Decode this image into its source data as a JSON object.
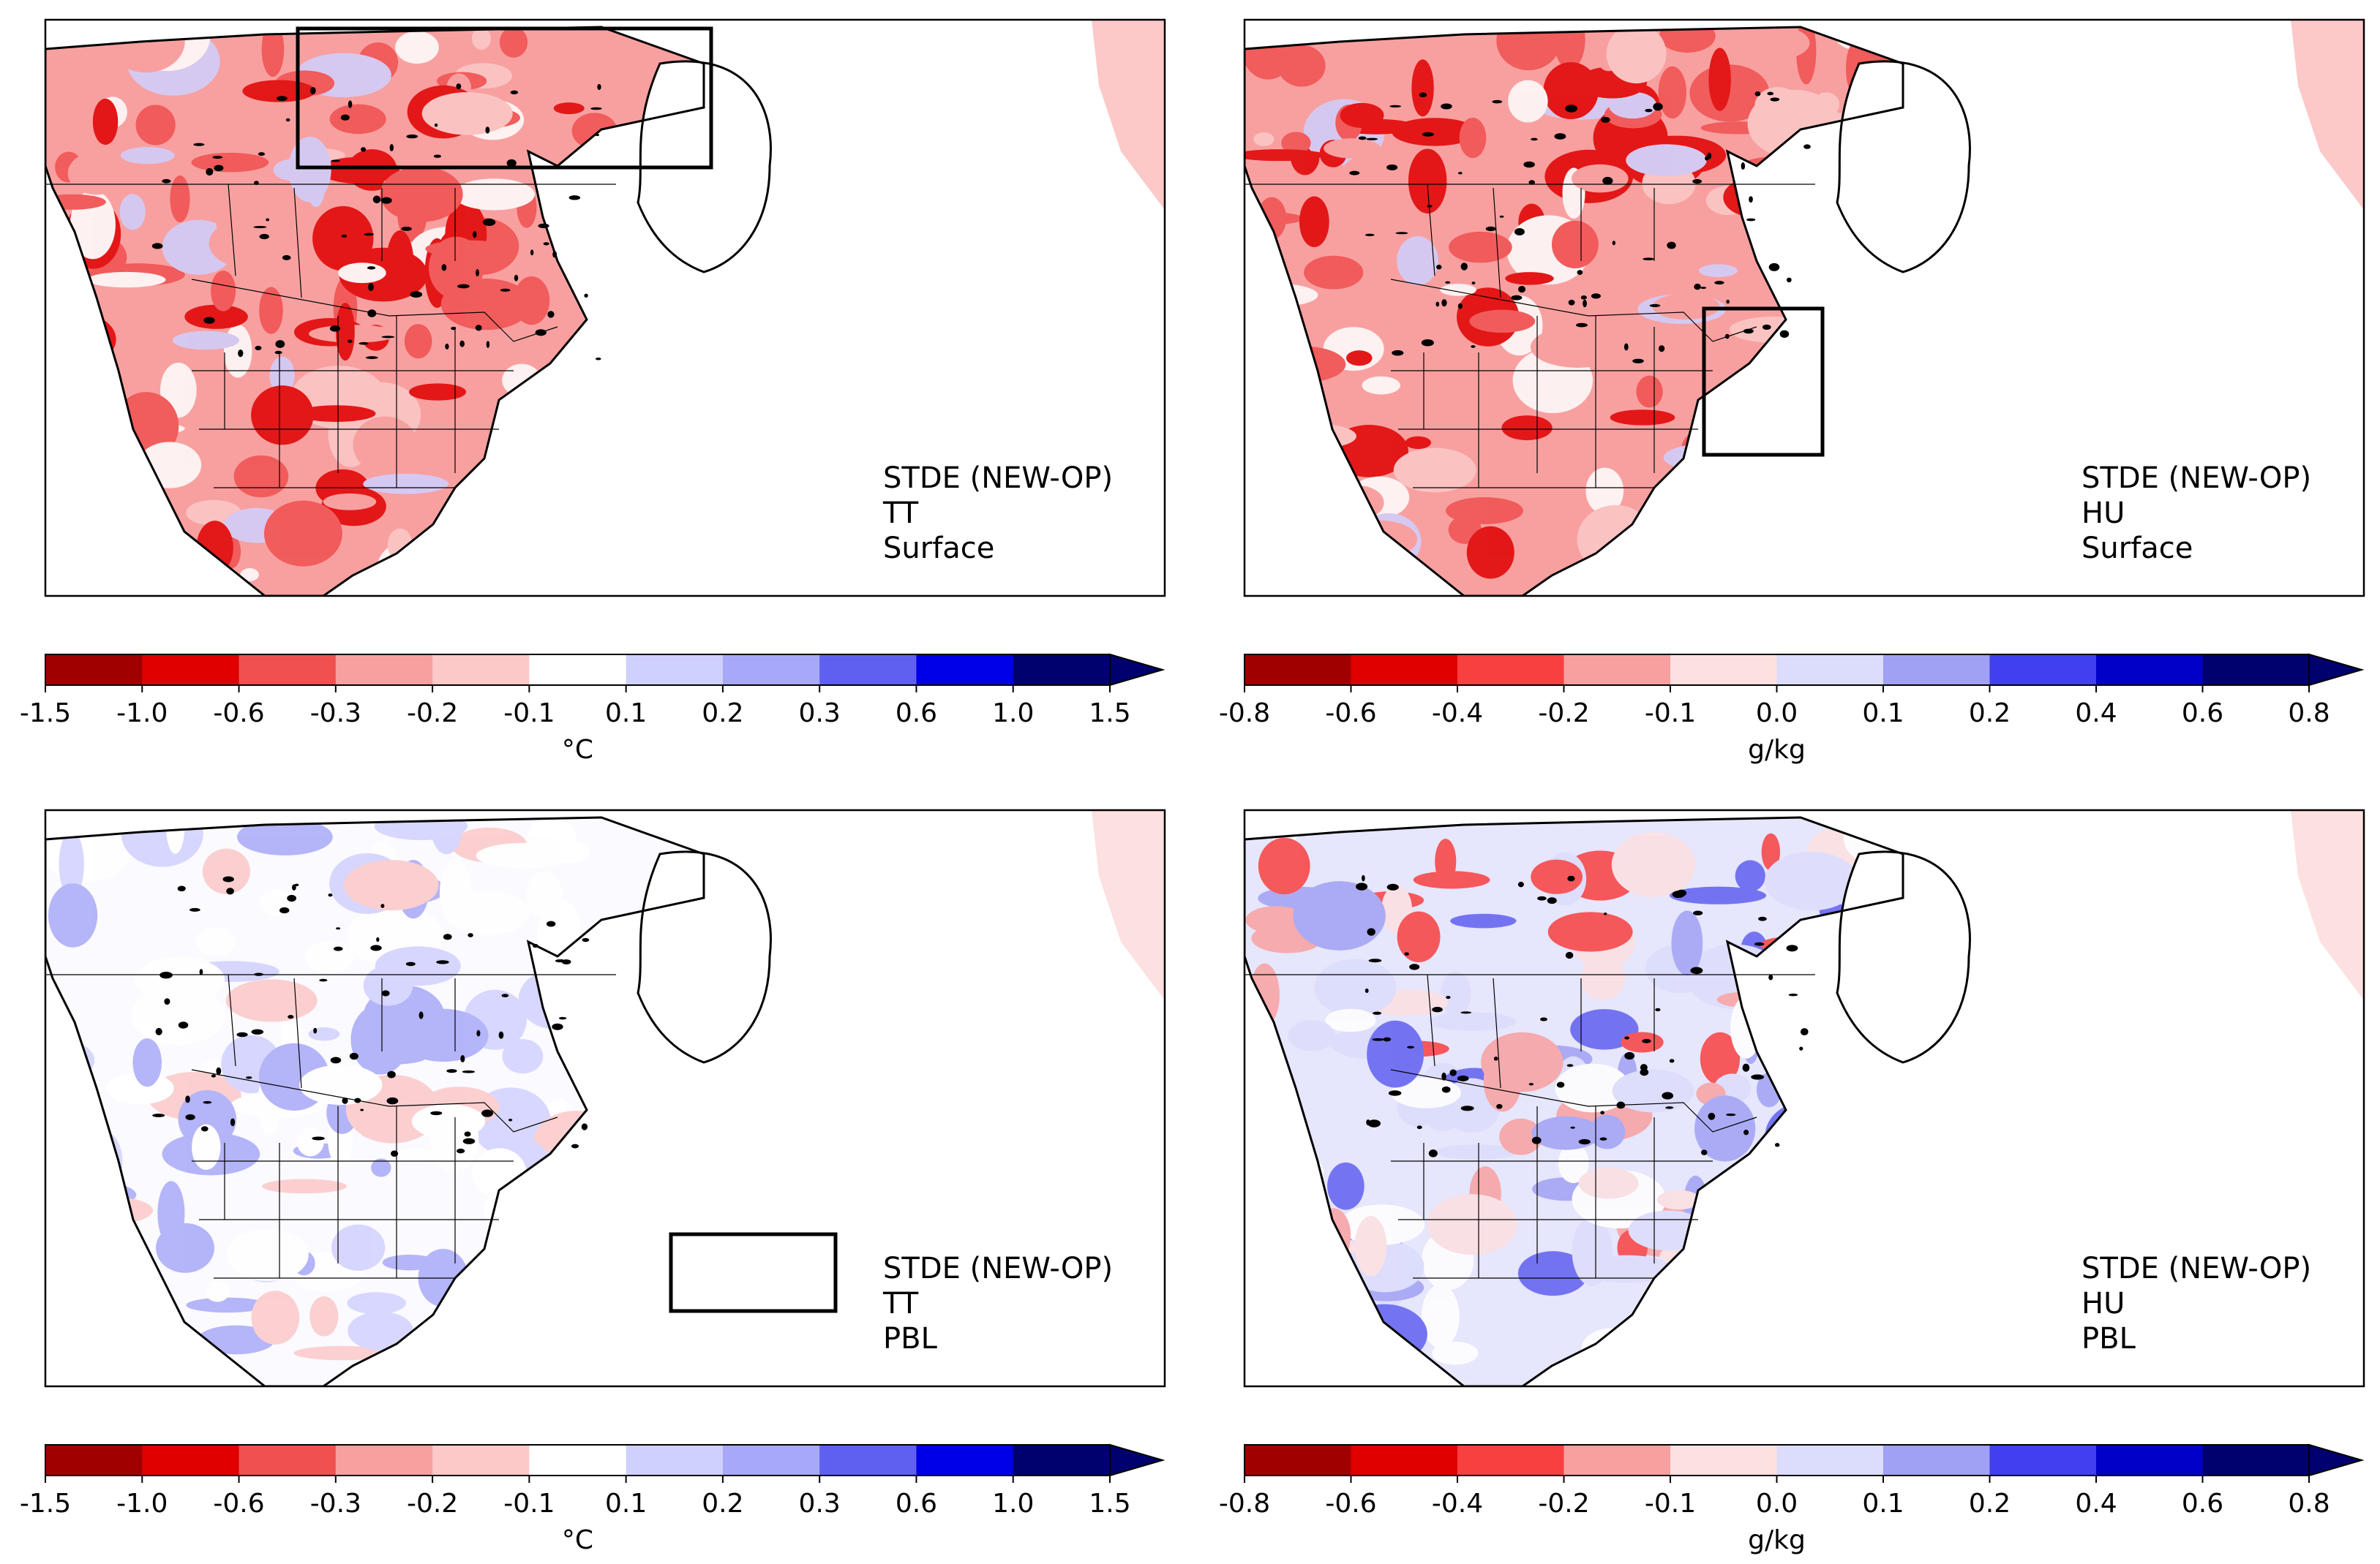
{
  "figure": {
    "panels": [
      {
        "id": "tt-surface",
        "title": "STDE (NEW-OP)",
        "variable": "TT",
        "level": "Surface",
        "scale": "temp",
        "tone": "red-strong",
        "box": "north-canada"
      },
      {
        "id": "hu-surface",
        "title": "STDE (NEW-OP)",
        "variable": "HU",
        "level": "Surface",
        "scale": "hum",
        "tone": "red-strong",
        "box": "central-us"
      },
      {
        "id": "tt-pbl",
        "title": "STDE (NEW-OP)",
        "variable": "TT",
        "level": "PBL",
        "scale": "temp",
        "tone": "neutral-blue",
        "box": "southeast-us"
      },
      {
        "id": "hu-pbl",
        "title": "STDE (NEW-OP)",
        "variable": "HU",
        "level": "PBL",
        "scale": "hum",
        "tone": "mixed",
        "box": null
      }
    ],
    "colorbars": {
      "temp": {
        "unit": "°C",
        "ticks": [
          "-1.5",
          "-1.0",
          "-0.6",
          "-0.3",
          "-0.2",
          "-0.1",
          "0.1",
          "0.2",
          "0.3",
          "0.6",
          "1.0",
          "1.5"
        ],
        "colors": [
          "#a00000",
          "#e00000",
          "#f05050",
          "#f8a0a0",
          "#fcc8c8",
          "#ffffff",
          "#d0d0ff",
          "#a8a8f8",
          "#6060f0",
          "#0000e8",
          "#00006e"
        ],
        "extend": "max"
      },
      "hum": {
        "unit": "g/kg",
        "ticks": [
          "-0.8",
          "-0.6",
          "-0.4",
          "-0.2",
          "-0.1",
          "0.0",
          "0.1",
          "0.2",
          "0.4",
          "0.6",
          "0.8"
        ],
        "colors": [
          "#a00000",
          "#e00000",
          "#f84040",
          "#f8a0a0",
          "#fde0e0",
          "#dcdcfc",
          "#a0a0f4",
          "#4040f0",
          "#0000c8",
          "#00006e"
        ],
        "extend": "max"
      }
    }
  }
}
